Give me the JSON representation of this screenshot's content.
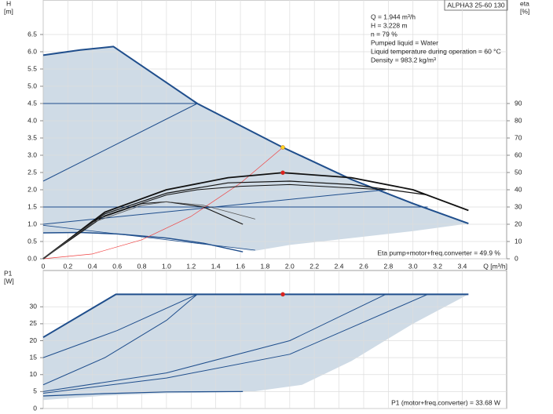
{
  "chart_data": [
    {
      "type": "line",
      "grid": true,
      "ylabel": [
        "H",
        "[m]"
      ],
      "y2label": [
        "eta",
        "[%]"
      ],
      "xlabel": "Q [m³/h]",
      "model": "ALPHA3 25-60 130",
      "info": [
        "Q = 1.944 m³/h",
        "H = 3.228 m",
        "n = 79 %",
        "Pumped liquid = Water",
        "Liquid temperature during operation = 60 °C",
        "Density = 983.2 kg/m³"
      ],
      "note": "Eta pump+motor+freq.converter = 49.9 %",
      "xlim": [
        0,
        3.76
      ],
      "xticks": [
        0,
        0.2,
        0.4,
        0.6,
        0.8,
        {
          "value": 1,
          "label": "1.0"
        },
        1.2,
        1.4,
        1.6,
        1.8,
        {
          "value": 2,
          "label": "2.0"
        },
        2.2,
        2.4,
        2.6,
        2.8,
        {
          "value": 3,
          "label": "3.0"
        },
        3.2,
        3.4
      ],
      "ylim": [
        0,
        7.5
      ],
      "yticks": [
        {
          "value": 0,
          "label": "0.0"
        },
        0.5,
        {
          "value": 1,
          "label": "1.0"
        },
        1.5,
        {
          "value": 2,
          "label": "2.0"
        },
        2.5,
        {
          "value": 3,
          "label": "3.0"
        },
        3.5,
        {
          "value": 4,
          "label": "4.0"
        },
        4.5,
        {
          "value": 5,
          "label": "5.0"
        },
        5.5,
        {
          "value": 6,
          "label": "6.0"
        },
        6.5
      ],
      "y2lim": [
        0,
        150
      ],
      "y2ticks": [
        0,
        10,
        20,
        30,
        40,
        50,
        60,
        70,
        80,
        90
      ],
      "series": [
        {
          "fill": "#cfdbe6",
          "x": [
            0,
            0.3,
            0.57,
            1.25,
            1.944,
            2.5,
            3.0,
            3.45,
            3.0,
            2.5,
            2.0,
            1.7,
            1.3,
            1.0,
            0.6,
            0.3,
            0
          ],
          "values": [
            5.9,
            6.05,
            6.15,
            4.5,
            3.228,
            2.3,
            1.6,
            1.02,
            0.8,
            0.6,
            0.4,
            0.22,
            0.45,
            0.6,
            0.72,
            0.76,
            0.75
          ]
        },
        {
          "color": "#1f4e8c",
          "width": 2,
          "x": [
            0,
            0.3,
            0.57,
            1.25,
            1.944,
            2.5,
            3.0,
            3.45
          ],
          "values": [
            5.9,
            6.05,
            6.15,
            4.5,
            3.228,
            2.3,
            1.6,
            1.02
          ]
        },
        {
          "color": "#1f4e8c",
          "width": 1,
          "x": [
            0,
            1.25
          ],
          "values": [
            4.5,
            4.5
          ]
        },
        {
          "color": "#1f4e8c",
          "width": 1,
          "x": [
            0,
            1.25
          ],
          "values": [
            2.25,
            4.5
          ]
        },
        {
          "color": "#1f4e8c",
          "width": 1,
          "x": [
            0,
            3.12
          ],
          "values": [
            1.5,
            1.5
          ]
        },
        {
          "color": "#1f4e8c",
          "width": 1,
          "x": [
            0,
            2.78
          ],
          "values": [
            1.0,
            2.0
          ]
        },
        {
          "color": "#1f4e8c",
          "width": 1.5,
          "x": [
            0,
            0.3,
            0.6,
            1.0,
            1.3,
            1.62
          ],
          "values": [
            0.75,
            0.76,
            0.72,
            0.6,
            0.45,
            0.2
          ]
        },
        {
          "color": "#1f4e8c",
          "width": 0.8,
          "x": [
            0,
            1.72
          ],
          "values": [
            0.97,
            0.25
          ]
        },
        {
          "color": "#f04040",
          "width": 0.7,
          "x": [
            0,
            0.4,
            0.8,
            1.2,
            1.6,
            1.944
          ],
          "values": [
            0,
            0.14,
            0.55,
            1.23,
            2.19,
            3.228
          ]
        },
        {
          "color": "#111",
          "width": 1.8,
          "axis": "y2",
          "x": [
            0,
            0.5,
            1.0,
            1.5,
            1.944,
            2.5,
            3.0,
            3.45
          ],
          "values": [
            0,
            27,
            40,
            47,
            49.9,
            47,
            40,
            28
          ]
        },
        {
          "color": "#111",
          "width": 1.2,
          "axis": "y2",
          "x": [
            0,
            0.5,
            1.0,
            1.5,
            2.0,
            2.5,
            3.12
          ],
          "values": [
            0,
            26,
            38,
            44,
            45,
            43,
            37
          ]
        },
        {
          "color": "#111",
          "width": 1,
          "axis": "y2",
          "x": [
            0,
            0.5,
            1.0,
            1.25,
            1.6,
            2.0,
            2.5,
            2.78
          ],
          "values": [
            0,
            25,
            37,
            40,
            42,
            43,
            41,
            40
          ]
        },
        {
          "color": "#111",
          "width": 1,
          "axis": "y2",
          "x": [
            0,
            0.4,
            0.8,
            1.0,
            1.3,
            1.62
          ],
          "values": [
            0,
            22,
            32,
            33,
            30,
            20
          ]
        },
        {
          "color": "#555",
          "width": 0.8,
          "axis": "y2",
          "x": [
            0,
            0.4,
            0.8,
            1.0,
            1.3,
            1.72
          ],
          "values": [
            0,
            21,
            31,
            33,
            31,
            23
          ]
        },
        {
          "marker": true,
          "color": "#ffd21f",
          "x": [
            1.944
          ],
          "values": [
            3.228
          ]
        },
        {
          "marker": true,
          "color": "#e02020",
          "axis": "y2",
          "x": [
            1.944
          ],
          "values": [
            49.9
          ]
        }
      ]
    },
    {
      "type": "line",
      "grid": true,
      "ylabel": [
        "P1",
        "[W]"
      ],
      "note": "P1 (motor+freq.converter) = 33.68 W",
      "xlim": [
        0,
        3.76
      ],
      "ylim": [
        0,
        40.7
      ],
      "yticks": [
        0,
        5,
        10,
        15,
        20,
        25,
        30
      ],
      "series": [
        {
          "fill": "#cfdbe6",
          "x": [
            0,
            0.59,
            3.45,
            3.0,
            2.8,
            2.5,
            2.1,
            1.7,
            1.0,
            0.5,
            0
          ],
          "values": [
            21,
            33.68,
            33.68,
            25,
            20.6,
            14,
            7,
            5,
            4.5,
            3.8,
            2.5
          ]
        },
        {
          "color": "#1f4e8c",
          "width": 2,
          "x": [
            0,
            0.59,
            3.45
          ],
          "values": [
            21,
            33.68,
            33.68
          ]
        },
        {
          "color": "#1f4e8c",
          "width": 1,
          "x": [
            0,
            0.6,
            1.25
          ],
          "values": [
            15,
            23,
            33.68
          ]
        },
        {
          "color": "#1f4e8c",
          "width": 1,
          "x": [
            0,
            0.5,
            1.0,
            1.25
          ],
          "values": [
            7,
            15,
            26,
            33.68
          ]
        },
        {
          "color": "#1f4e8c",
          "width": 1,
          "x": [
            0,
            1.0,
            2.0,
            2.78
          ],
          "values": [
            5,
            10.5,
            20,
            33.68
          ]
        },
        {
          "color": "#1f4e8c",
          "width": 1,
          "x": [
            0,
            1.0,
            2.0,
            3.12
          ],
          "values": [
            4.5,
            9,
            16,
            33.68
          ]
        },
        {
          "color": "#1f4e8c",
          "width": 1.2,
          "x": [
            0,
            0.5,
            1.0,
            1.62
          ],
          "values": [
            3.7,
            4.4,
            4.9,
            5.0
          ]
        },
        {
          "marker": true,
          "color": "#e02020",
          "x": [
            1.944
          ],
          "values": [
            33.68
          ]
        }
      ]
    }
  ]
}
